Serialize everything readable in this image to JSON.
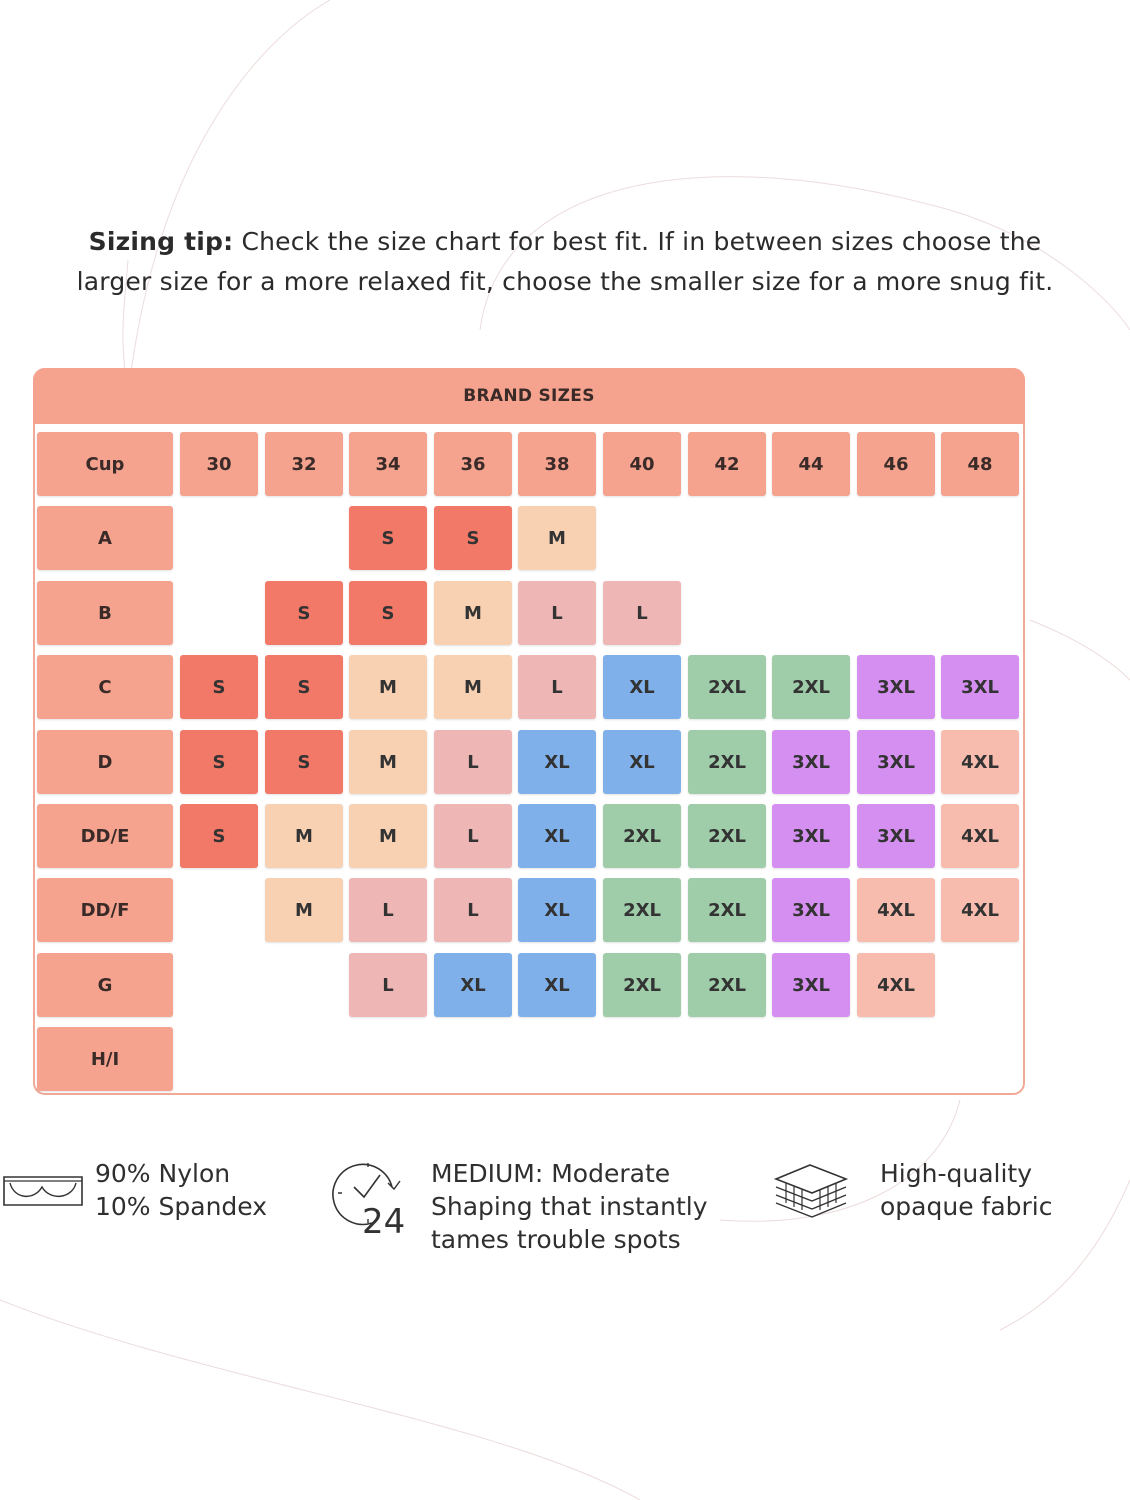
{
  "tip": {
    "bold": "Sizing tip:",
    "line1": "Check the size chart for best fit. If in between sizes choose the",
    "line2": "larger size for a more relaxed fit, choose the smaller size for a more snug fit."
  },
  "chart": {
    "title": "BRAND SIZES",
    "corner_label": "Cup",
    "band_sizes": [
      "30",
      "32",
      "34",
      "36",
      "38",
      "40",
      "42",
      "44",
      "46",
      "48"
    ],
    "rows": [
      {
        "cup": "A",
        "sizes": [
          "",
          "",
          "S",
          "S",
          "M",
          "",
          "",
          "",
          "",
          ""
        ]
      },
      {
        "cup": "B",
        "sizes": [
          "",
          "S",
          "S",
          "M",
          "L",
          "L",
          "",
          "",
          "",
          ""
        ]
      },
      {
        "cup": "C",
        "sizes": [
          "S",
          "S",
          "M",
          "M",
          "L",
          "XL",
          "2XL",
          "2XL",
          "3XL",
          "3XL"
        ]
      },
      {
        "cup": "D",
        "sizes": [
          "S",
          "S",
          "M",
          "L",
          "XL",
          "XL",
          "2XL",
          "3XL",
          "3XL",
          "4XL"
        ]
      },
      {
        "cup": "DD/E",
        "sizes": [
          "S",
          "M",
          "M",
          "L",
          "XL",
          "2XL",
          "2XL",
          "3XL",
          "3XL",
          "4XL"
        ]
      },
      {
        "cup": "DD/F",
        "sizes": [
          "",
          "M",
          "L",
          "L",
          "XL",
          "2XL",
          "2XL",
          "3XL",
          "4XL",
          "4XL"
        ]
      },
      {
        "cup": "G",
        "sizes": [
          "",
          "",
          "L",
          "XL",
          "XL",
          "2XL",
          "2XL",
          "3XL",
          "4XL",
          ""
        ]
      },
      {
        "cup": "H/I",
        "sizes": [
          "",
          "",
          "",
          "",
          "",
          "",
          "",
          "",
          "",
          ""
        ]
      }
    ],
    "size_colors": {
      "S": "#f27868",
      "M": "#f8d1b3",
      "L": "#efb6b6",
      "XL": "#7fb0ea",
      "2XL": "#9fcca9",
      "3XL": "#d58ff1",
      "4XL": "#f8bcaf"
    },
    "header_color": "#f5a38f"
  },
  "features": [
    {
      "icon": "bra-icon",
      "lines": [
        "90% Nylon",
        "10% Spandex"
      ]
    },
    {
      "icon": "clock-24-icon",
      "lines": [
        "MEDIUM: Moderate",
        "Shaping that instantly",
        "tames trouble spots"
      ]
    },
    {
      "icon": "fabric-layers-icon",
      "lines": [
        "High-quality",
        "opaque fabric"
      ]
    }
  ]
}
